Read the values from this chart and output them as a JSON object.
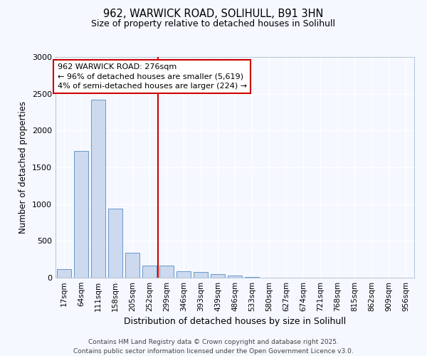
{
  "title1": "962, WARWICK ROAD, SOLIHULL, B91 3HN",
  "title2": "Size of property relative to detached houses in Solihull",
  "xlabel": "Distribution of detached houses by size in Solihull",
  "ylabel": "Number of detached properties",
  "categories": [
    "17sqm",
    "64sqm",
    "111sqm",
    "158sqm",
    "205sqm",
    "252sqm",
    "299sqm",
    "346sqm",
    "393sqm",
    "439sqm",
    "486sqm",
    "533sqm",
    "580sqm",
    "627sqm",
    "674sqm",
    "721sqm",
    "768sqm",
    "815sqm",
    "862sqm",
    "909sqm",
    "956sqm"
  ],
  "values": [
    120,
    1720,
    2420,
    940,
    340,
    160,
    160,
    90,
    75,
    45,
    30,
    10,
    3,
    0,
    0,
    0,
    0,
    0,
    0,
    0,
    0
  ],
  "bar_color": "#ccd9ee",
  "bar_edge_color": "#6699cc",
  "background_color": "#f5f8ff",
  "grid_color": "#dce6f5",
  "vline_x": 5.5,
  "vline_color": "#cc0000",
  "annotation_text": "962 WARWICK ROAD: 276sqm\n← 96% of detached houses are smaller (5,619)\n4% of semi-detached houses are larger (224) →",
  "annotation_box_color": "#ffffff",
  "annotation_box_edge": "#cc0000",
  "footer": "Contains HM Land Registry data © Crown copyright and database right 2025.\nContains public sector information licensed under the Open Government Licence v3.0.",
  "ylim": [
    0,
    3000
  ],
  "yticks": [
    0,
    500,
    1000,
    1500,
    2000,
    2500,
    3000
  ],
  "figsize": [
    6.0,
    5.0
  ],
  "dpi": 100
}
